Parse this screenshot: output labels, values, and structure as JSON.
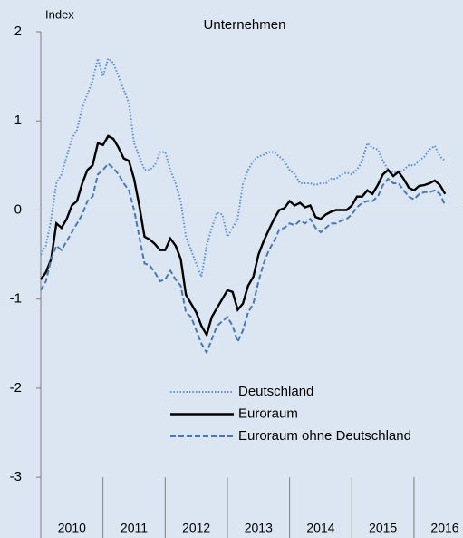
{
  "chart_data": {
    "type": "line",
    "title": "Unternehmen",
    "y_label": "Index",
    "xlim": [
      2010,
      2016.7
    ],
    "xticks": [
      2010,
      2011,
      2012,
      2013,
      2014,
      2015,
      2016
    ],
    "ylim": [
      -3.65,
      2
    ],
    "yticks": [
      -3,
      -2,
      -1,
      0,
      1,
      2
    ],
    "x": [
      2010,
      2010.083,
      2010.167,
      2010.25,
      2010.333,
      2010.417,
      2010.5,
      2010.583,
      2010.667,
      2010.75,
      2010.833,
      2010.917,
      2011,
      2011.083,
      2011.167,
      2011.25,
      2011.333,
      2011.417,
      2011.5,
      2011.583,
      2011.667,
      2011.75,
      2011.833,
      2011.917,
      2012,
      2012.083,
      2012.167,
      2012.25,
      2012.333,
      2012.417,
      2012.5,
      2012.583,
      2012.667,
      2012.75,
      2012.833,
      2012.917,
      2013,
      2013.083,
      2013.167,
      2013.25,
      2013.333,
      2013.417,
      2013.5,
      2013.583,
      2013.667,
      2013.75,
      2013.833,
      2013.917,
      2014,
      2014.083,
      2014.167,
      2014.25,
      2014.333,
      2014.417,
      2014.5,
      2014.583,
      2014.667,
      2014.75,
      2014.833,
      2014.917,
      2015,
      2015.083,
      2015.167,
      2015.25,
      2015.333,
      2015.417,
      2015.5,
      2015.583,
      2015.667,
      2015.75,
      2015.833,
      2015.917,
      2016,
      2016.083,
      2016.167,
      2016.25,
      2016.333,
      2016.417,
      2016.5
    ],
    "series": [
      {
        "name": "Deutschland",
        "color": "#5a8fd0",
        "dash": "dotted",
        "values": [
          -0.5,
          -0.4,
          -0.1,
          0.3,
          0.4,
          0.6,
          0.8,
          0.9,
          1.15,
          1.3,
          1.45,
          1.7,
          1.5,
          1.7,
          1.65,
          1.5,
          1.35,
          1.2,
          0.75,
          0.6,
          0.45,
          0.45,
          0.5,
          0.65,
          0.65,
          0.45,
          0.3,
          0.1,
          -0.3,
          -0.45,
          -0.6,
          -0.75,
          -0.4,
          -0.2,
          -0.03,
          -0.05,
          -0.3,
          -0.2,
          -0.1,
          0.3,
          0.45,
          0.55,
          0.6,
          0.62,
          0.65,
          0.65,
          0.6,
          0.55,
          0.45,
          0.4,
          0.3,
          0.3,
          0.3,
          0.28,
          0.3,
          0.3,
          0.35,
          0.35,
          0.4,
          0.42,
          0.4,
          0.45,
          0.55,
          0.75,
          0.7,
          0.68,
          0.55,
          0.45,
          0.42,
          0.42,
          0.45,
          0.5,
          0.5,
          0.55,
          0.6,
          0.68,
          0.72,
          0.6,
          0.55
        ]
      },
      {
        "name": "Euroraum",
        "color": "#000000",
        "dash": "solid",
        "values": [
          -0.78,
          -0.7,
          -0.55,
          -0.15,
          -0.2,
          -0.1,
          0.05,
          0.1,
          0.3,
          0.45,
          0.5,
          0.75,
          0.73,
          0.83,
          0.8,
          0.7,
          0.58,
          0.55,
          0.35,
          0.05,
          -0.3,
          -0.33,
          -0.38,
          -0.45,
          -0.45,
          -0.32,
          -0.4,
          -0.55,
          -0.95,
          -1.05,
          -1.15,
          -1.3,
          -1.4,
          -1.2,
          -1.1,
          -1.0,
          -0.9,
          -0.92,
          -1.12,
          -1.05,
          -0.85,
          -0.75,
          -0.5,
          -0.35,
          -0.22,
          -0.1,
          0.0,
          0.02,
          0.1,
          0.05,
          0.08,
          0.03,
          0.05,
          -0.08,
          -0.1,
          -0.05,
          -0.02,
          0.0,
          0.0,
          0.0,
          0.05,
          0.15,
          0.15,
          0.22,
          0.18,
          0.28,
          0.4,
          0.45,
          0.38,
          0.43,
          0.35,
          0.25,
          0.22,
          0.27,
          0.28,
          0.3,
          0.33,
          0.28,
          0.18
        ]
      },
      {
        "name": "Euroraum ohne Deutschland",
        "color": "#4a78b5",
        "dash": "dashed",
        "values": [
          -0.9,
          -0.8,
          -0.55,
          -0.4,
          -0.45,
          -0.35,
          -0.25,
          -0.15,
          -0.05,
          0.1,
          0.15,
          0.4,
          0.45,
          0.52,
          0.47,
          0.4,
          0.3,
          0.22,
          0.0,
          -0.3,
          -0.6,
          -0.62,
          -0.7,
          -0.8,
          -0.78,
          -0.68,
          -0.78,
          -0.85,
          -1.15,
          -1.2,
          -1.35,
          -1.5,
          -1.6,
          -1.45,
          -1.3,
          -1.25,
          -1.2,
          -1.3,
          -1.48,
          -1.35,
          -1.15,
          -1.05,
          -0.8,
          -0.6,
          -0.45,
          -0.35,
          -0.22,
          -0.2,
          -0.15,
          -0.17,
          -0.12,
          -0.15,
          -0.1,
          -0.2,
          -0.25,
          -0.2,
          -0.15,
          -0.15,
          -0.12,
          -0.1,
          -0.05,
          0.03,
          0.08,
          0.1,
          0.1,
          0.15,
          0.28,
          0.35,
          0.3,
          0.3,
          0.22,
          0.15,
          0.12,
          0.18,
          0.2,
          0.2,
          0.22,
          0.18,
          0.05
        ]
      }
    ]
  }
}
